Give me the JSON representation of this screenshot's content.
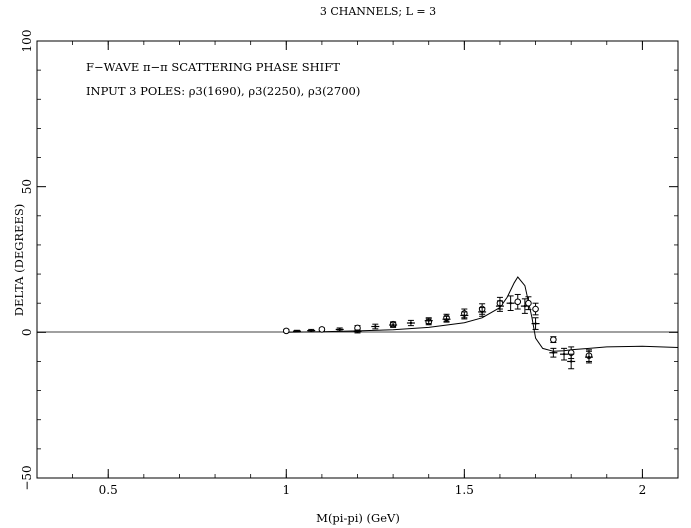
{
  "chart_data": {
    "type": "scatter",
    "title": "3 CHANNELS; L = 3",
    "xlabel": "M(pi-pi) (GeV)",
    "ylabel": "DELTA (DEGREES)",
    "xlim": [
      0.3,
      2.1
    ],
    "ylim": [
      -50,
      100
    ],
    "x_ticks": [
      0.5,
      1,
      1.5,
      2
    ],
    "x_tick_labels": [
      "0.5",
      "1",
      "1.5",
      "2"
    ],
    "y_ticks": [
      -50,
      0,
      50,
      100
    ],
    "y_tick_labels": [
      "−50",
      "0",
      "50",
      "100"
    ],
    "grid": false,
    "zero_line": true,
    "annotations": [
      "F−WAVE π−π SCATTERING PHASE SHIFT",
      "INPUT 3 POLES: ρ3(1690), ρ3(2250), ρ3(2700)"
    ],
    "series": [
      {
        "type": "line",
        "x": [
          1.0,
          1.1,
          1.2,
          1.3,
          1.4,
          1.5,
          1.55,
          1.6,
          1.62,
          1.64,
          1.65,
          1.67,
          1.69,
          1.7,
          1.72,
          1.75,
          1.78,
          1.8,
          1.85,
          1.9,
          2.0,
          2.1
        ],
        "y": [
          0.0,
          0.2,
          0.5,
          0.9,
          1.7,
          3.3,
          5.0,
          8.5,
          12.0,
          17.0,
          19.0,
          16.0,
          5.0,
          -2.0,
          -5.5,
          -6.5,
          -6.3,
          -6.0,
          -5.5,
          -5.0,
          -4.8,
          -5.2
        ]
      },
      {
        "type": "scatter",
        "marker": "circle-errorbar",
        "x": [
          1.0,
          1.1,
          1.2,
          1.3,
          1.4,
          1.45,
          1.5,
          1.55,
          1.6,
          1.65,
          1.68,
          1.7,
          1.75,
          1.8,
          1.85
        ],
        "y": [
          0.5,
          1.0,
          1.5,
          2.8,
          3.6,
          5.0,
          6.5,
          8.0,
          10.0,
          10.5,
          10.0,
          8.0,
          -2.5,
          -7.0,
          -8.0
        ],
        "yerr": [
          0.5,
          0.5,
          0.8,
          0.8,
          1.0,
          1.2,
          1.5,
          1.8,
          2.0,
          2.5,
          2.2,
          2.0,
          1.0,
          2.0,
          2.0
        ]
      },
      {
        "type": "scatter",
        "marker": "cross",
        "x": [
          1.03,
          1.07,
          1.15,
          1.2,
          1.25,
          1.3,
          1.35,
          1.4,
          1.45,
          1.5,
          1.55,
          1.6,
          1.63,
          1.67,
          1.7,
          1.75,
          1.78,
          1.8,
          1.85
        ],
        "y": [
          0.4,
          0.6,
          1.0,
          0.3,
          2.0,
          2.5,
          3.2,
          4.0,
          4.5,
          5.8,
          7.0,
          9.0,
          10.0,
          9.0,
          3.0,
          -7.0,
          -7.5,
          -10.0,
          -8.5
        ],
        "yerr": [
          0.3,
          0.4,
          0.5,
          0.5,
          0.8,
          0.8,
          0.9,
          1.0,
          1.0,
          1.2,
          1.5,
          1.8,
          2.5,
          2.5,
          2.0,
          1.5,
          2.0,
          2.5,
          2.0
        ]
      }
    ]
  }
}
